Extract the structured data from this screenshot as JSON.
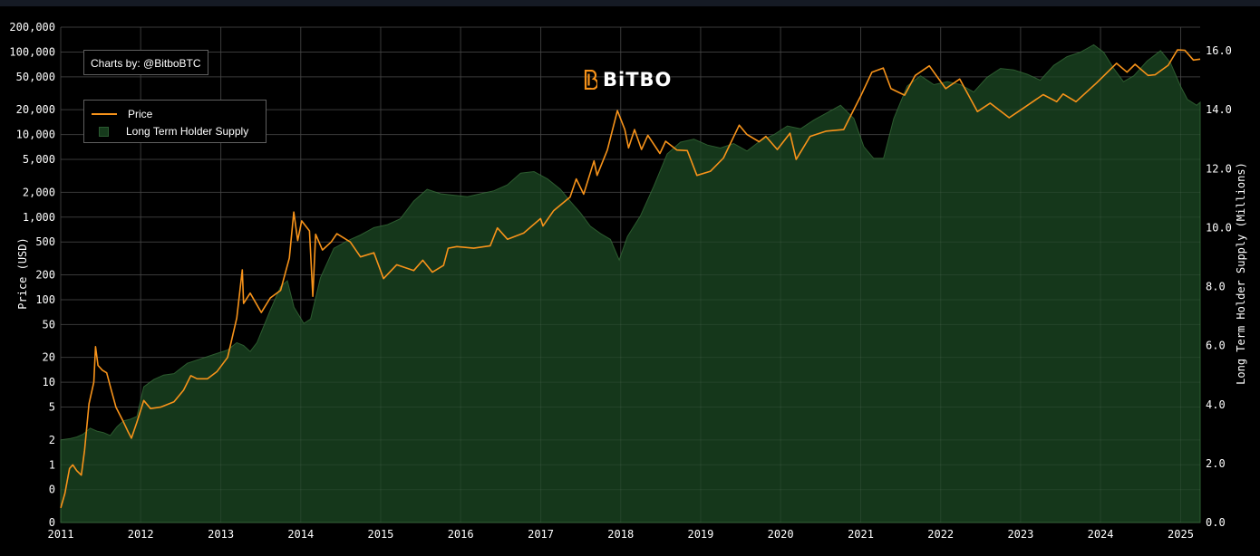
{
  "credit": "Charts by: @BitboBTC",
  "logo_text": "BiTBO",
  "colors": {
    "background": "#000000",
    "price": "#f7931a",
    "lths_fill": "#163a1c",
    "lths_edge": "#2c5b2f",
    "grid": "#2e2e2e",
    "axis_text": "#ffffff"
  },
  "icons": [
    "bitbo-logo-icon"
  ],
  "chart_data": {
    "type": "line",
    "title": "",
    "xlabel": "",
    "ylabel": "Price (USD)",
    "y2label": "Long Term Holder Supply (Millions)",
    "yscale": "log",
    "x_ticks": [
      "2011",
      "2012",
      "2013",
      "2014",
      "2015",
      "2016",
      "2017",
      "2018",
      "2019",
      "2020",
      "2021",
      "2022",
      "2023",
      "2024",
      "2025"
    ],
    "y_ticks": [
      {
        "value": 0.2,
        "label": "0"
      },
      {
        "value": 0.5,
        "label": "0"
      },
      {
        "value": 1,
        "label": "1"
      },
      {
        "value": 2,
        "label": "2"
      },
      {
        "value": 5,
        "label": "5"
      },
      {
        "value": 10,
        "label": "10"
      },
      {
        "value": 20,
        "label": "20"
      },
      {
        "value": 50,
        "label": "50"
      },
      {
        "value": 100,
        "label": "100"
      },
      {
        "value": 200,
        "label": "200"
      },
      {
        "value": 500,
        "label": "500"
      },
      {
        "value": 1000,
        "label": "1,000"
      },
      {
        "value": 2000,
        "label": "2,000"
      },
      {
        "value": 5000,
        "label": "5,000"
      },
      {
        "value": 10000,
        "label": "10,000"
      },
      {
        "value": 20000,
        "label": "20,000"
      },
      {
        "value": 50000,
        "label": "50,000"
      },
      {
        "value": 100000,
        "label": "100,000"
      },
      {
        "value": 200000,
        "label": "200,000"
      }
    ],
    "y2_ticks": [
      "0.0",
      "2.0",
      "4.0",
      "6.0",
      "8.0",
      "10.0",
      "12.0",
      "14.0",
      "16.0"
    ],
    "y2lim": [
      0,
      16.8
    ],
    "xlim": [
      "2011-01-01",
      "2025-03-31"
    ],
    "legend_position": "top-left",
    "grid": true,
    "series": [
      {
        "name": "Price",
        "axis": "left",
        "color": "#f7931a",
        "points": [
          [
            "2011-01-01",
            0.3
          ],
          [
            "2011-01-20",
            0.45
          ],
          [
            "2011-02-10",
            0.9
          ],
          [
            "2011-02-25",
            1.0
          ],
          [
            "2011-03-15",
            0.85
          ],
          [
            "2011-04-05",
            0.75
          ],
          [
            "2011-04-20",
            1.5
          ],
          [
            "2011-05-10",
            5.5
          ],
          [
            "2011-06-01",
            10
          ],
          [
            "2011-06-09",
            27
          ],
          [
            "2011-06-20",
            16
          ],
          [
            "2011-07-10",
            14
          ],
          [
            "2011-07-30",
            13
          ],
          [
            "2011-08-20",
            8
          ],
          [
            "2011-09-10",
            5
          ],
          [
            "2011-10-10",
            3.5
          ],
          [
            "2011-11-05",
            2.5
          ],
          [
            "2011-11-20",
            2.1
          ],
          [
            "2011-12-15",
            3.3
          ],
          [
            "2012-01-15",
            6
          ],
          [
            "2012-02-15",
            4.8
          ],
          [
            "2012-04-01",
            5
          ],
          [
            "2012-06-01",
            5.8
          ],
          [
            "2012-07-15",
            8
          ],
          [
            "2012-08-17",
            12
          ],
          [
            "2012-09-15",
            11
          ],
          [
            "2012-11-01",
            11
          ],
          [
            "2012-12-15",
            13.5
          ],
          [
            "2013-02-01",
            20
          ],
          [
            "2013-03-15",
            60
          ],
          [
            "2013-04-09",
            230
          ],
          [
            "2013-04-15",
            90
          ],
          [
            "2013-05-15",
            120
          ],
          [
            "2013-07-05",
            70
          ],
          [
            "2013-08-15",
            105
          ],
          [
            "2013-10-01",
            130
          ],
          [
            "2013-11-10",
            320
          ],
          [
            "2013-11-30",
            1150
          ],
          [
            "2013-12-18",
            520
          ],
          [
            "2014-01-05",
            900
          ],
          [
            "2014-02-10",
            680
          ],
          [
            "2014-02-25",
            110
          ],
          [
            "2014-03-10",
            620
          ],
          [
            "2014-04-10",
            400
          ],
          [
            "2014-05-20",
            500
          ],
          [
            "2014-06-15",
            630
          ],
          [
            "2014-08-15",
            500
          ],
          [
            "2014-10-01",
            330
          ],
          [
            "2014-12-01",
            370
          ],
          [
            "2015-01-14",
            180
          ],
          [
            "2015-03-15",
            265
          ],
          [
            "2015-06-01",
            225
          ],
          [
            "2015-07-12",
            300
          ],
          [
            "2015-08-25",
            215
          ],
          [
            "2015-10-15",
            260
          ],
          [
            "2015-11-05",
            420
          ],
          [
            "2015-12-15",
            440
          ],
          [
            "2016-03-01",
            420
          ],
          [
            "2016-05-15",
            450
          ],
          [
            "2016-06-17",
            740
          ],
          [
            "2016-08-02",
            540
          ],
          [
            "2016-10-15",
            640
          ],
          [
            "2016-12-31",
            960
          ],
          [
            "2017-01-11",
            780
          ],
          [
            "2017-03-01",
            1200
          ],
          [
            "2017-05-15",
            1750
          ],
          [
            "2017-06-12",
            2900
          ],
          [
            "2017-07-16",
            1900
          ],
          [
            "2017-09-01",
            4800
          ],
          [
            "2017-09-15",
            3200
          ],
          [
            "2017-11-01",
            6500
          ],
          [
            "2017-12-17",
            19500
          ],
          [
            "2018-01-20",
            11500
          ],
          [
            "2018-02-06",
            6900
          ],
          [
            "2018-03-05",
            11500
          ],
          [
            "2018-04-06",
            6600
          ],
          [
            "2018-05-05",
            9800
          ],
          [
            "2018-06-29",
            5900
          ],
          [
            "2018-07-25",
            8300
          ],
          [
            "2018-09-15",
            6500
          ],
          [
            "2018-11-01",
            6400
          ],
          [
            "2018-12-15",
            3200
          ],
          [
            "2019-02-15",
            3600
          ],
          [
            "2019-04-15",
            5200
          ],
          [
            "2019-06-26",
            13000
          ],
          [
            "2019-08-01",
            10000
          ],
          [
            "2019-09-25",
            8200
          ],
          [
            "2019-10-26",
            9500
          ],
          [
            "2019-12-17",
            6600
          ],
          [
            "2020-02-13",
            10400
          ],
          [
            "2020-03-12",
            5000
          ],
          [
            "2020-05-15",
            9500
          ],
          [
            "2020-07-28",
            11000
          ],
          [
            "2020-10-15",
            11500
          ],
          [
            "2020-12-31",
            29000
          ],
          [
            "2021-02-21",
            57000
          ],
          [
            "2021-04-14",
            64000
          ],
          [
            "2021-05-19",
            36000
          ],
          [
            "2021-07-20",
            30000
          ],
          [
            "2021-09-07",
            52000
          ],
          [
            "2021-11-10",
            68000
          ],
          [
            "2022-01-24",
            36000
          ],
          [
            "2022-03-29",
            47000
          ],
          [
            "2022-06-18",
            19000
          ],
          [
            "2022-08-15",
            24000
          ],
          [
            "2022-11-10",
            16000
          ],
          [
            "2023-01-15",
            21000
          ],
          [
            "2023-04-14",
            30500
          ],
          [
            "2023-06-15",
            25000
          ],
          [
            "2023-07-14",
            31000
          ],
          [
            "2023-09-11",
            25000
          ],
          [
            "2023-12-15",
            42500
          ],
          [
            "2024-03-14",
            73000
          ],
          [
            "2024-05-01",
            57000
          ],
          [
            "2024-06-07",
            71000
          ],
          [
            "2024-08-05",
            52000
          ],
          [
            "2024-09-06",
            53000
          ],
          [
            "2024-11-05",
            69000
          ],
          [
            "2024-12-17",
            106000
          ],
          [
            "2025-01-20",
            105000
          ],
          [
            "2025-02-28",
            80000
          ],
          [
            "2025-03-31",
            82000
          ]
        ]
      },
      {
        "name": "Long Term Holder Supply",
        "axis": "right",
        "color": "#163a1c",
        "points": [
          [
            "2011-01-01",
            2.8
          ],
          [
            "2011-02-15",
            2.85
          ],
          [
            "2011-03-15",
            2.9
          ],
          [
            "2011-04-15",
            3.0
          ],
          [
            "2011-05-15",
            3.2
          ],
          [
            "2011-06-15",
            3.1
          ],
          [
            "2011-07-15",
            3.05
          ],
          [
            "2011-08-15",
            2.95
          ],
          [
            "2011-09-15",
            3.25
          ],
          [
            "2011-10-15",
            3.45
          ],
          [
            "2011-11-15",
            3.5
          ],
          [
            "2011-12-15",
            3.6
          ],
          [
            "2012-01-15",
            4.6
          ],
          [
            "2012-03-01",
            4.85
          ],
          [
            "2012-04-15",
            5.0
          ],
          [
            "2012-06-01",
            5.05
          ],
          [
            "2012-08-01",
            5.4
          ],
          [
            "2012-10-01",
            5.55
          ],
          [
            "2012-12-01",
            5.7
          ],
          [
            "2013-02-01",
            5.85
          ],
          [
            "2013-03-15",
            6.1
          ],
          [
            "2013-04-15",
            6.0
          ],
          [
            "2013-05-15",
            5.8
          ],
          [
            "2013-06-15",
            6.1
          ],
          [
            "2013-08-15",
            7.2
          ],
          [
            "2013-10-01",
            8.0
          ],
          [
            "2013-11-01",
            8.2
          ],
          [
            "2013-12-01",
            7.3
          ],
          [
            "2014-01-15",
            6.75
          ],
          [
            "2014-02-15",
            6.9
          ],
          [
            "2014-04-01",
            8.3
          ],
          [
            "2014-06-01",
            9.3
          ],
          [
            "2014-08-01",
            9.55
          ],
          [
            "2014-10-01",
            9.75
          ],
          [
            "2014-12-01",
            10.0
          ],
          [
            "2015-02-01",
            10.1
          ],
          [
            "2015-04-01",
            10.3
          ],
          [
            "2015-06-01",
            10.9
          ],
          [
            "2015-08-01",
            11.3
          ],
          [
            "2015-10-01",
            11.15
          ],
          [
            "2015-12-01",
            11.1
          ],
          [
            "2016-02-01",
            11.05
          ],
          [
            "2016-04-01",
            11.15
          ],
          [
            "2016-06-01",
            11.25
          ],
          [
            "2016-08-01",
            11.45
          ],
          [
            "2016-10-01",
            11.85
          ],
          [
            "2016-12-01",
            11.9
          ],
          [
            "2017-02-01",
            11.65
          ],
          [
            "2017-04-01",
            11.3
          ],
          [
            "2017-05-15",
            10.9
          ],
          [
            "2017-07-01",
            10.5
          ],
          [
            "2017-08-15",
            10.05
          ],
          [
            "2017-10-01",
            9.8
          ],
          [
            "2017-11-15",
            9.6
          ],
          [
            "2017-12-25",
            8.9
          ],
          [
            "2018-02-01",
            9.7
          ],
          [
            "2018-04-01",
            10.4
          ],
          [
            "2018-06-01",
            11.4
          ],
          [
            "2018-08-01",
            12.5
          ],
          [
            "2018-10-01",
            12.9
          ],
          [
            "2018-12-01",
            13.0
          ],
          [
            "2019-02-01",
            12.8
          ],
          [
            "2019-04-01",
            12.7
          ],
          [
            "2019-06-01",
            12.85
          ],
          [
            "2019-08-01",
            12.6
          ],
          [
            "2019-10-01",
            12.95
          ],
          [
            "2019-12-01",
            13.15
          ],
          [
            "2020-02-01",
            13.45
          ],
          [
            "2020-04-01",
            13.35
          ],
          [
            "2020-06-01",
            13.65
          ],
          [
            "2020-08-01",
            13.9
          ],
          [
            "2020-10-01",
            14.15
          ],
          [
            "2020-12-01",
            13.7
          ],
          [
            "2021-01-15",
            12.75
          ],
          [
            "2021-03-01",
            12.35
          ],
          [
            "2021-04-15",
            12.35
          ],
          [
            "2021-06-01",
            13.7
          ],
          [
            "2021-08-01",
            14.8
          ],
          [
            "2021-10-01",
            15.15
          ],
          [
            "2021-12-01",
            14.85
          ],
          [
            "2022-02-01",
            14.95
          ],
          [
            "2022-04-01",
            14.85
          ],
          [
            "2022-06-01",
            14.6
          ],
          [
            "2022-08-01",
            15.1
          ],
          [
            "2022-10-01",
            15.4
          ],
          [
            "2022-12-01",
            15.35
          ],
          [
            "2023-02-01",
            15.2
          ],
          [
            "2023-04-01",
            15.0
          ],
          [
            "2023-06-01",
            15.5
          ],
          [
            "2023-08-01",
            15.8
          ],
          [
            "2023-10-01",
            15.95
          ],
          [
            "2023-12-01",
            16.2
          ],
          [
            "2024-01-15",
            15.95
          ],
          [
            "2024-03-01",
            15.4
          ],
          [
            "2024-04-15",
            14.95
          ],
          [
            "2024-06-01",
            15.15
          ],
          [
            "2024-08-01",
            15.65
          ],
          [
            "2024-10-01",
            16.0
          ],
          [
            "2024-11-15",
            15.6
          ],
          [
            "2024-12-31",
            14.8
          ],
          [
            "2025-02-01",
            14.35
          ],
          [
            "2025-03-15",
            14.15
          ],
          [
            "2025-03-31",
            14.25
          ]
        ]
      }
    ]
  }
}
